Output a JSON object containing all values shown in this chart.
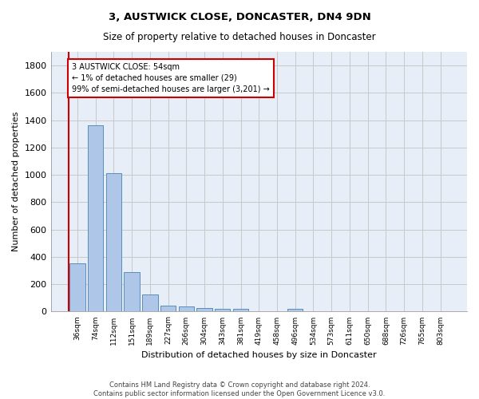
{
  "title1": "3, AUSTWICK CLOSE, DONCASTER, DN4 9DN",
  "title2": "Size of property relative to detached houses in Doncaster",
  "xlabel": "Distribution of detached houses by size in Doncaster",
  "ylabel": "Number of detached properties",
  "bar_categories": [
    "36sqm",
    "74sqm",
    "112sqm",
    "151sqm",
    "189sqm",
    "227sqm",
    "266sqm",
    "304sqm",
    "343sqm",
    "381sqm",
    "419sqm",
    "458sqm",
    "496sqm",
    "534sqm",
    "573sqm",
    "611sqm",
    "650sqm",
    "688sqm",
    "726sqm",
    "765sqm",
    "803sqm"
  ],
  "bar_values": [
    355,
    1360,
    1010,
    290,
    125,
    42,
    35,
    28,
    20,
    18,
    0,
    0,
    22,
    0,
    0,
    0,
    0,
    0,
    0,
    0,
    0
  ],
  "bar_color": "#aec6e8",
  "bar_edge_color": "#5b8db8",
  "ylim": [
    0,
    1900
  ],
  "yticks": [
    0,
    200,
    400,
    600,
    800,
    1000,
    1200,
    1400,
    1600,
    1800
  ],
  "grid_color": "#c8c8c8",
  "bg_color": "#e8eef8",
  "annotation_line1": "3 AUSTWICK CLOSE: 54sqm",
  "annotation_line2": "← 1% of detached houses are smaller (29)",
  "annotation_line3": "99% of semi-detached houses are larger (3,201) →",
  "annotation_box_color": "#ffffff",
  "annotation_box_edge": "#cc0000",
  "vline_color": "#cc0000",
  "footer_line1": "Contains HM Land Registry data © Crown copyright and database right 2024.",
  "footer_line2": "Contains public sector information licensed under the Open Government Licence v3.0."
}
